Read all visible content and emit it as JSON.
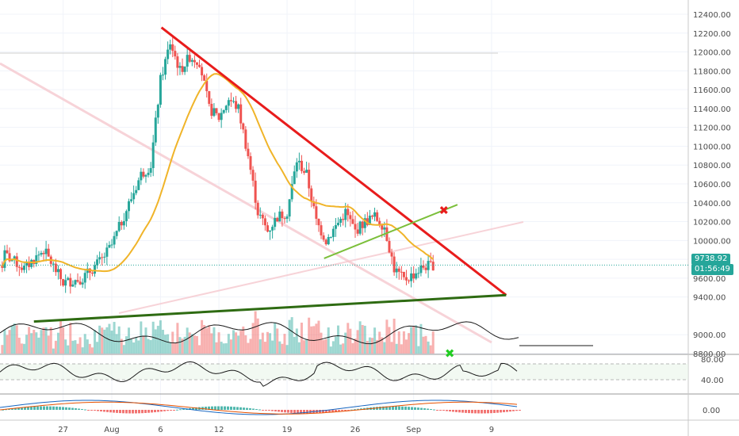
{
  "chart_data": {
    "type": "candlestick",
    "price_axis": {
      "ticks": [
        "12400.00",
        "12200.00",
        "12000.00",
        "11800.00",
        "11600.00",
        "11400.00",
        "11200.00",
        "11000.00",
        "10800.00",
        "10600.00",
        "10400.00",
        "10200.00",
        "10000.00",
        "9800.00",
        "9600.00",
        "9400.00",
        "9000.00",
        "8800.00"
      ],
      "tick_values": [
        12400,
        12200,
        12000,
        11800,
        11600,
        11400,
        11200,
        11000,
        10800,
        10600,
        10400,
        10200,
        10000,
        9800,
        9600,
        9400,
        9000,
        8800
      ]
    },
    "rsi_axis": {
      "ticks": [
        "80.00",
        "40.00"
      ],
      "values": [
        80,
        40
      ]
    },
    "macd_axis": {
      "ticks": [
        "0.00"
      ],
      "values": [
        0
      ]
    },
    "x_axis": {
      "ticks": [
        "27",
        "Aug",
        "6",
        "12",
        "19",
        "26",
        "Sep",
        "9"
      ],
      "tick_days": [
        -5,
        0,
        5,
        11,
        18,
        25,
        31,
        39
      ]
    },
    "last_price": "9738.92",
    "countdown": "01:56:49",
    "trendlines": [
      {
        "role": "descending-resistance",
        "color": "#e81c1c",
        "from": {
          "day": 5.1,
          "price": 12260
        },
        "to": {
          "day": 40.5,
          "price": 9420
        }
      },
      {
        "role": "ascending-support",
        "color": "#2e6b12",
        "from": {
          "day": -8,
          "price": 9140
        },
        "to": {
          "day": 40.5,
          "price": 9420
        }
      },
      {
        "role": "breakdown-line",
        "color": "#7bbf3a",
        "from": {
          "day": 21.8,
          "price": 9810
        },
        "to": {
          "day": 35.5,
          "price": 10380
        }
      }
    ],
    "markers": [
      {
        "symbol": "✖",
        "color": "#e81c1c",
        "day": 34.1,
        "price": 10320
      },
      {
        "symbol": "✖",
        "color": "#22cc22",
        "day": 34.7,
        "price": 8800
      }
    ],
    "colors": {
      "up": "#26a69a",
      "down": "#ef5350",
      "ma": "#f0b429",
      "rsi": "#1a1a1a",
      "grid": "#f0f3fa",
      "tag": "#26a69a"
    }
  }
}
